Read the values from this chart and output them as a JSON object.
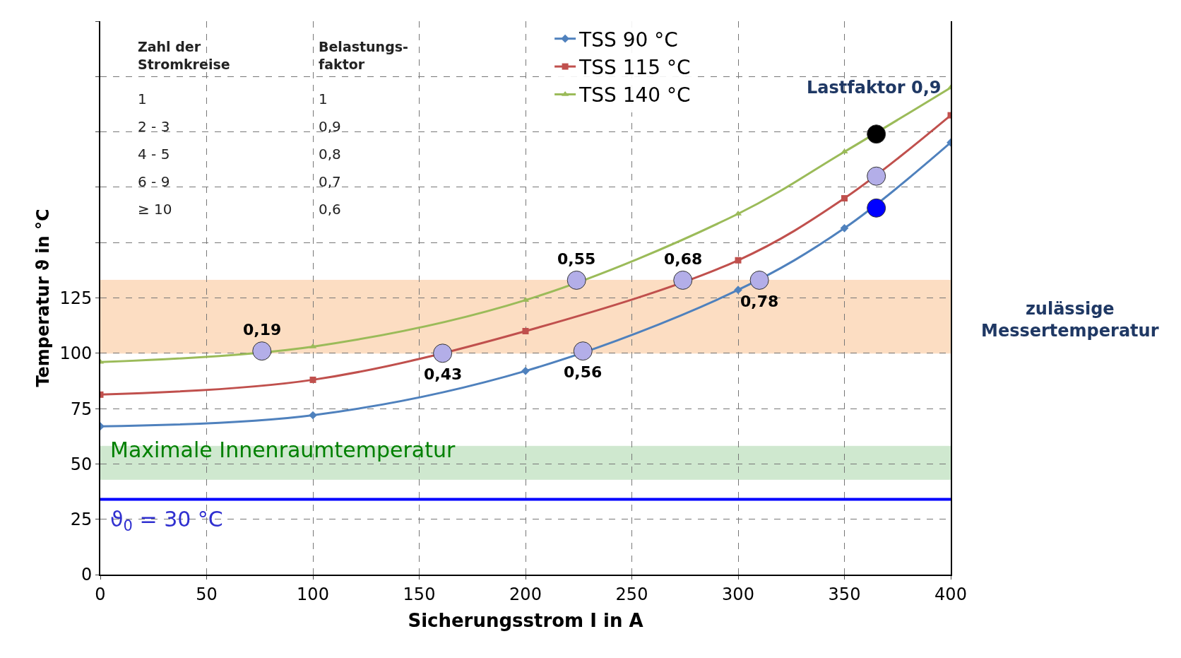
{
  "chart_data": {
    "type": "line",
    "xlabel": "Sicherungsstrom I in A",
    "ylabel": "Temperatur ϑ in °C",
    "x": [
      0,
      100,
      200,
      300,
      350,
      400
    ],
    "xlim": [
      0,
      400
    ],
    "xticks": [
      0,
      50,
      100,
      150,
      200,
      250,
      300,
      350,
      400
    ],
    "ylim": [
      0,
      250
    ],
    "yticks": [
      0,
      25,
      50,
      75,
      100,
      125,
      {
        "value": 150,
        "label": null
      },
      {
        "value": 175,
        "label": null
      },
      {
        "value": 200,
        "label": null
      },
      {
        "value": 225,
        "label": null
      },
      {
        "value": 250,
        "label": null
      }
    ],
    "grid": true,
    "legend": "top",
    "series": [
      {
        "name": "TSS 90 °C",
        "color": "#4f81bd",
        "marker": "diamond",
        "values": [
          67,
          72,
          92,
          128.6,
          156.5,
          195.2
        ]
      },
      {
        "name": "TSS 115 °C",
        "color": "#c0504d",
        "marker": "square",
        "values": [
          81.3,
          88,
          110,
          142,
          170,
          207.5
        ]
      },
      {
        "name": "TSS 140 °C",
        "color": "#9bbb59",
        "marker": "triangle",
        "values": [
          96,
          103,
          124,
          163,
          191,
          220
        ]
      },
      {
        "type": "scatter",
        "marker": "circle",
        "x": [
          76,
          161,
          227,
          224,
          274,
          310,
          365,
          365,
          365
        ],
        "values": [
          101,
          100,
          101,
          133,
          133,
          133,
          199,
          180,
          165.6
        ],
        "colors": [
          "#b3aee8",
          "#b3aee8",
          "#b3aee8",
          "#b3aee8",
          "#b3aee8",
          "#b3aee8",
          "#000000",
          "#b3aee8",
          "#0000ff"
        ]
      }
    ],
    "bands": [
      {
        "axis": "y",
        "from": 100,
        "to": 133,
        "color": "#fcd5b4"
      },
      {
        "axis": "y",
        "from": 43,
        "to": 58,
        "color": "#c4e3c4"
      }
    ],
    "ref_lines": [
      {
        "axis": "y",
        "value": 34,
        "color": "#0000ff"
      }
    ],
    "annotations": [
      {
        "text": "0,19",
        "x": 76,
        "y": 101
      },
      {
        "text": "0,43",
        "x": 161,
        "y": 100
      },
      {
        "text": "0,56",
        "x": 227,
        "y": 101
      },
      {
        "text": "0,55",
        "x": 224,
        "y": 133
      },
      {
        "text": "0,68",
        "x": 274,
        "y": 133
      },
      {
        "text": "0,78",
        "x": 310,
        "y": 133
      },
      "Maximale Innenraumtemperatur",
      "ϑ$_{0}$ = 30 °C",
      "zulässige\nMessertemperatur",
      "Lastfaktor 0,9",
      "Zahl der\nStromkreise",
      "Belastungs-\nfaktor",
      "1",
      "1",
      "2 - 3",
      "0,9",
      "4 - 5",
      "0,8",
      "6 - 9",
      "0,7",
      "≥ 10",
      "0,6"
    ]
  }
}
